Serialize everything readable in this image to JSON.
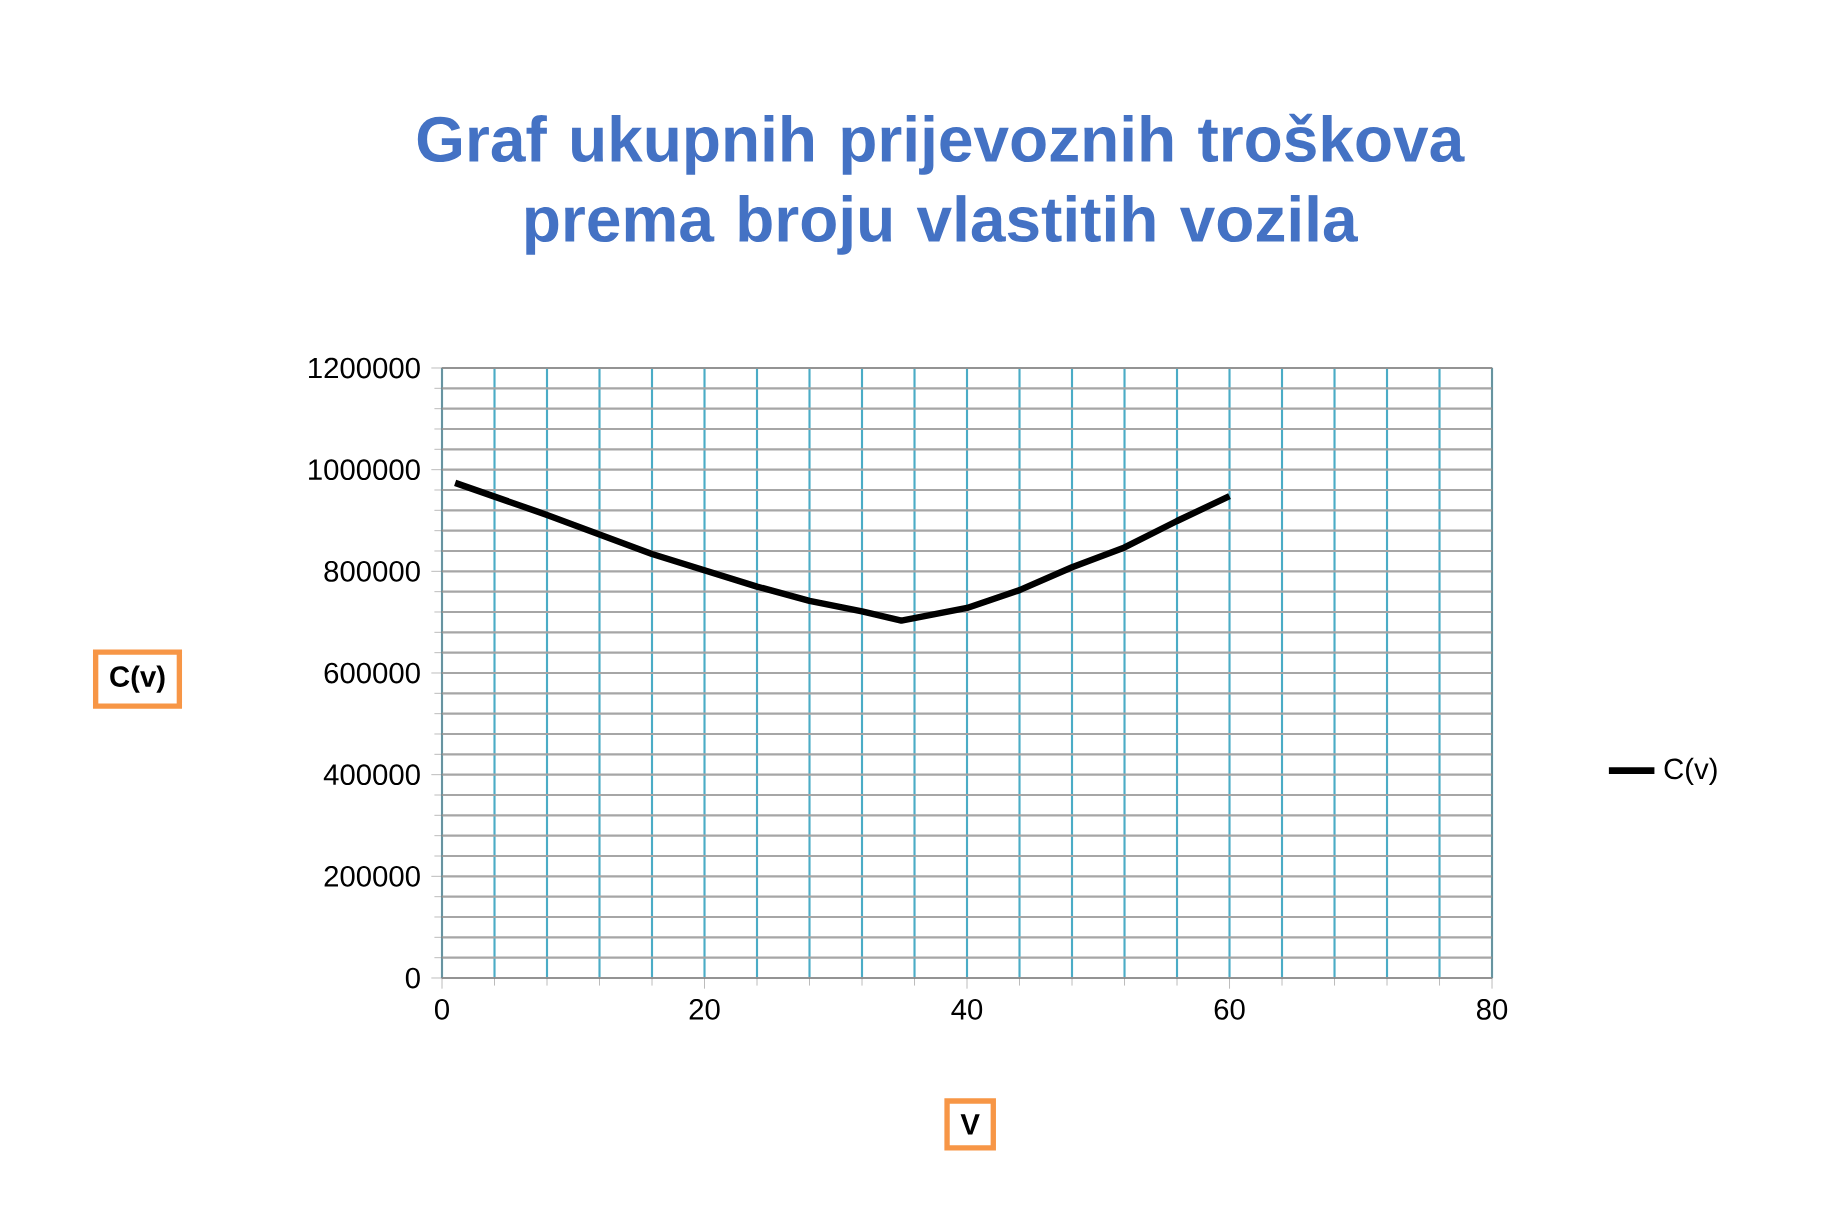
{
  "chart_data": {
    "type": "line",
    "title": "Graf ukupnih prijevoznih troškova prema broju vlastitih vozila",
    "xlabel": "V",
    "ylabel": "C(v)",
    "series": [
      {
        "name": "C(v)",
        "color": "#000000",
        "x": [
          1,
          8,
          16,
          24,
          28,
          32,
          35,
          40,
          44,
          48,
          52,
          56,
          60
        ],
        "values": [
          974000,
          911000,
          834000,
          770000,
          742000,
          721000,
          703000,
          728000,
          763000,
          808000,
          847000,
          899000,
          948000
        ]
      }
    ],
    "xlim": [
      0,
      80
    ],
    "xticks": [
      0,
      20,
      40,
      60,
      80
    ],
    "ylim": [
      0,
      1200000
    ],
    "yticks": [
      0,
      200000,
      400000,
      600000,
      800000,
      1000000,
      1200000
    ],
    "grid": true,
    "legend": "right",
    "marker": "none",
    "line_style": "solid"
  }
}
